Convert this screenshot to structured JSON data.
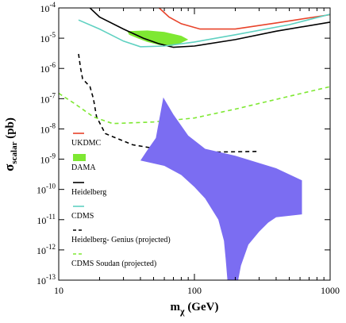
{
  "chart_data": {
    "type": "line",
    "xlabel_main": "m",
    "xlabel_sub": "χ",
    "xlabel_unit": " (GeV)",
    "ylabel_main": "σ",
    "ylabel_sub": "scalar",
    "ylabel_unit": " (pb)",
    "xscale": "log",
    "yscale": "log",
    "xlim": [
      10,
      1000
    ],
    "ylim": [
      1e-13,
      0.0001
    ],
    "grid": false,
    "legend_position": "left",
    "x_ticks": [
      {
        "value": 10,
        "label": "10"
      },
      {
        "value": 100,
        "label": "100"
      },
      {
        "value": 1000,
        "label": "1000"
      }
    ],
    "y_ticks": [
      {
        "value": 0.0001,
        "base": "10",
        "exp": "-4"
      },
      {
        "value": 1e-05,
        "base": "10",
        "exp": "-5"
      },
      {
        "value": 1e-06,
        "base": "10",
        "exp": "-6"
      },
      {
        "value": 1e-07,
        "base": "10",
        "exp": "-7"
      },
      {
        "value": 1e-08,
        "base": "10",
        "exp": "-8"
      },
      {
        "value": 1e-09,
        "base": "10",
        "exp": "-9"
      },
      {
        "value": 1e-10,
        "base": "10",
        "exp": "-10"
      },
      {
        "value": 1e-11,
        "base": "10",
        "exp": "-11"
      },
      {
        "value": 1e-12,
        "base": "10",
        "exp": "-12"
      },
      {
        "value": 1e-13,
        "base": "10",
        "exp": "-13"
      }
    ],
    "series": [
      {
        "name": "UKDMC",
        "kind": "line",
        "color": "#e8432a",
        "dash": "",
        "points": [
          [
            55,
            0.0001
          ],
          [
            65,
            5e-05
          ],
          [
            80,
            3e-05
          ],
          [
            110,
            2e-05
          ],
          [
            200,
            2e-05
          ],
          [
            400,
            3.2e-05
          ],
          [
            1000,
            6e-05
          ]
        ]
      },
      {
        "name": "DAMA",
        "kind": "area",
        "color": "#7ee832",
        "points": [
          [
            32,
            1.7e-05
          ],
          [
            45,
            1.8e-05
          ],
          [
            60,
            1.6e-05
          ],
          [
            80,
            1.2e-05
          ],
          [
            90,
            9e-06
          ],
          [
            80,
            7e-06
          ],
          [
            68,
            5.5e-06
          ],
          [
            55,
            6e-06
          ],
          [
            45,
            7.5e-06
          ],
          [
            38,
            1e-05
          ],
          [
            33,
            1.3e-05
          ]
        ]
      },
      {
        "name": "Heidelberg",
        "kind": "line",
        "color": "#000000",
        "dash": "",
        "points": [
          [
            17,
            0.0001
          ],
          [
            20,
            5e-05
          ],
          [
            30,
            2e-05
          ],
          [
            42,
            1e-05
          ],
          [
            55,
            6.5e-06
          ],
          [
            70,
            5e-06
          ],
          [
            100,
            5.5e-06
          ],
          [
            200,
            9e-06
          ],
          [
            400,
            1.7e-05
          ],
          [
            1000,
            3.4e-05
          ]
        ]
      },
      {
        "name": "CDMS",
        "kind": "line",
        "color": "#5fd1c1",
        "dash": "",
        "points": [
          [
            14,
            4e-05
          ],
          [
            20,
            2e-05
          ],
          [
            30,
            8e-06
          ],
          [
            40,
            5.2e-06
          ],
          [
            60,
            5.5e-06
          ],
          [
            100,
            7.5e-06
          ],
          [
            200,
            1.3e-05
          ],
          [
            500,
            2.8e-05
          ],
          [
            1000,
            6.2e-05
          ]
        ]
      },
      {
        "name": "Heidelberg- Genius (projected)",
        "kind": "line",
        "color": "#000000",
        "dash": "5,4",
        "points": [
          [
            14,
            3e-06
          ],
          [
            14.5,
            1e-06
          ],
          [
            15,
            4.5e-07
          ],
          [
            17,
            2.5e-07
          ],
          [
            18,
            1e-07
          ],
          [
            19,
            2.5e-08
          ],
          [
            22,
            7e-09
          ],
          [
            35,
            3e-09
          ],
          [
            60,
            2e-09
          ],
          [
            120,
            1.7e-09
          ],
          [
            300,
            1.8e-09
          ]
        ]
      },
      {
        "name": "CDMS Soudan (projected)",
        "kind": "line",
        "color": "#7ee832",
        "dash": "5,4",
        "points": [
          [
            10,
            1.5e-07
          ],
          [
            13,
            7e-08
          ],
          [
            18,
            2.5e-08
          ],
          [
            25,
            1.5e-08
          ],
          [
            50,
            1.7e-08
          ],
          [
            100,
            2.3e-08
          ],
          [
            200,
            4.5e-08
          ],
          [
            500,
            1.2e-07
          ],
          [
            1000,
            2.5e-07
          ]
        ]
      },
      {
        "name": "",
        "kind": "area",
        "color": "#7b6df2",
        "points": [
          [
            59,
            1.1e-07
          ],
          [
            70,
            3e-08
          ],
          [
            90,
            6e-09
          ],
          [
            120,
            2.2e-09
          ],
          [
            200,
            1.3e-09
          ],
          [
            400,
            5e-10
          ],
          [
            620,
            2e-10
          ],
          [
            620,
            1.5e-11
          ],
          [
            400,
            1.2e-11
          ],
          [
            350,
            8e-12
          ],
          [
            300,
            4e-12
          ],
          [
            250,
            1.5e-12
          ],
          [
            220,
            3e-13
          ],
          [
            210,
            1e-13
          ],
          [
            175,
            1e-13
          ],
          [
            170,
            5e-13
          ],
          [
            165,
            2e-12
          ],
          [
            150,
            1e-11
          ],
          [
            120,
            5e-11
          ],
          [
            100,
            1.2e-10
          ],
          [
            80,
            3e-10
          ],
          [
            60,
            6e-10
          ],
          [
            40,
            9e-10
          ],
          [
            45,
            2e-09
          ],
          [
            52,
            5e-09
          ],
          [
            55,
            2e-08
          ]
        ]
      }
    ]
  }
}
